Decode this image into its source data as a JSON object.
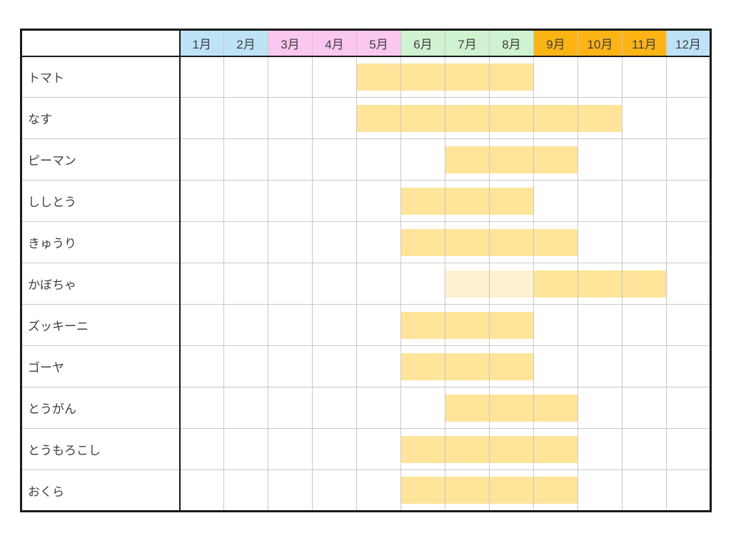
{
  "chart_data": {
    "type": "table",
    "title": "",
    "description": "Vegetable harvest calendar: months across the top, vegetables down the side, yellow bars mark harvest/growing months",
    "columns": [
      {
        "label": "1月",
        "color": "#BEE3F7"
      },
      {
        "label": "2月",
        "color": "#BEE3F7"
      },
      {
        "label": "3月",
        "color": "#FAC7F0"
      },
      {
        "label": "4月",
        "color": "#FAC7F0"
      },
      {
        "label": "5月",
        "color": "#FAC7F0"
      },
      {
        "label": "6月",
        "color": "#CFF2D1"
      },
      {
        "label": "7月",
        "color": "#CFF2D1"
      },
      {
        "label": "8月",
        "color": "#CFF2D1"
      },
      {
        "label": "9月",
        "color": "#FCB415"
      },
      {
        "label": "10月",
        "color": "#FCB415"
      },
      {
        "label": "11月",
        "color": "#FCB415"
      },
      {
        "label": "12月",
        "color": "#BEE3F7"
      }
    ],
    "rows": [
      {
        "label": "トマト",
        "segments": [
          {
            "start": 5,
            "end": 8,
            "style": "full"
          }
        ]
      },
      {
        "label": "なす",
        "segments": [
          {
            "start": 5,
            "end": 10,
            "style": "full"
          }
        ]
      },
      {
        "label": "ピーマン",
        "segments": [
          {
            "start": 7,
            "end": 9,
            "style": "full"
          }
        ]
      },
      {
        "label": "ししとう",
        "segments": [
          {
            "start": 6,
            "end": 8,
            "style": "full"
          }
        ]
      },
      {
        "label": "きゅうり",
        "segments": [
          {
            "start": 6,
            "end": 9,
            "style": "full"
          }
        ]
      },
      {
        "label": "かぼちゃ",
        "segments": [
          {
            "start": 7,
            "end": 8,
            "style": "pale"
          },
          {
            "start": 9,
            "end": 11,
            "style": "full"
          }
        ]
      },
      {
        "label": "ズッキーニ",
        "segments": [
          {
            "start": 6,
            "end": 8,
            "style": "full"
          }
        ]
      },
      {
        "label": "ゴーヤ",
        "segments": [
          {
            "start": 6,
            "end": 8,
            "style": "full"
          }
        ]
      },
      {
        "label": "とうがん",
        "segments": [
          {
            "start": 7,
            "end": 9,
            "style": "full"
          }
        ]
      },
      {
        "label": "とうもろこし",
        "segments": [
          {
            "start": 6,
            "end": 9,
            "style": "full"
          }
        ]
      },
      {
        "label": "おくら",
        "segments": [
          {
            "start": 6,
            "end": 9,
            "style": "full"
          }
        ]
      }
    ],
    "bar_colors": {
      "full": "#FFE49A",
      "pale": "#FCF1D0"
    },
    "grid_color": "#C9C9C9",
    "border_color": "#191919",
    "text_color": "#3F3F3F",
    "background_color": "#FFFFFF"
  }
}
